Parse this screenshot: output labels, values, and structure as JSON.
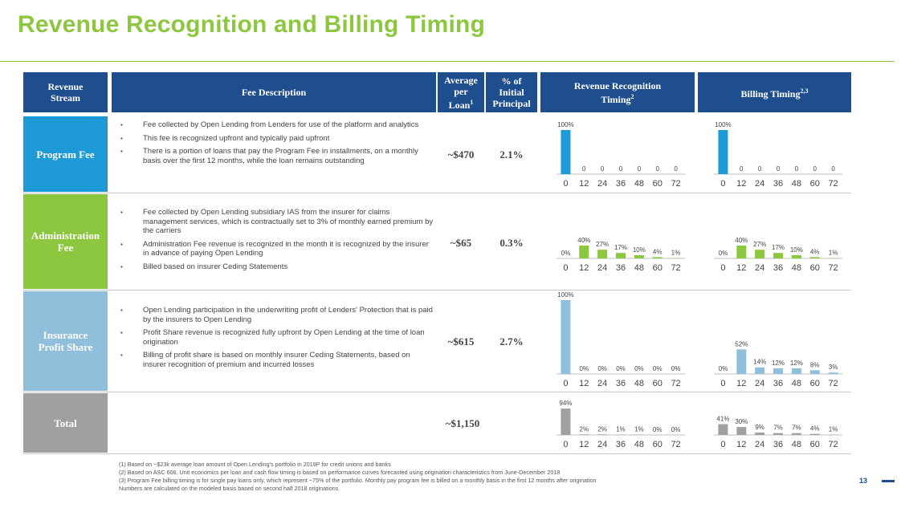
{
  "title": "Revenue Recognition and Billing Timing",
  "colors": {
    "accent_green": "#8dc63f",
    "header_blue": "#1f4e8f",
    "program_blue": "#1e9ad6",
    "admin_green": "#8dc63f",
    "insurance_lightblue": "#8fbfdb",
    "total_gray": "#a0a0a0"
  },
  "headers": {
    "stream_l1": "Revenue",
    "stream_l2": "Stream",
    "fee_description": "Fee Description",
    "avg_l1": "Average",
    "avg_l2": "per",
    "avg_l3": "Loan",
    "avg_sup": "1",
    "pct_l1": "% of",
    "pct_l2": "Initial",
    "pct_l3": "Principal",
    "recog_l1": "Revenue Recognition",
    "recog_l2": "Timing",
    "recog_sup": "2",
    "billing": "Billing Timing",
    "billing_sup": "2,3"
  },
  "rows": [
    {
      "label_l1": "Program Fee",
      "label_l2": "",
      "color": "#1e9ad6",
      "bullets": [
        "Fee collected by Open Lending from Lenders for use of the platform and analytics",
        "This fee is recognized upfront and typically paid upfront",
        "There is a portion of loans that pay the Program Fee in installments, on a monthly basis over the first 12 months, while the loan remains outstanding"
      ],
      "avg": "~$470",
      "pct": "2.1%"
    },
    {
      "label_l1": "Administration",
      "label_l2": "Fee",
      "color": "#8dc63f",
      "bullets": [
        "Fee collected by Open Lending subsidiary IAS from the insurer for claims management services, which is contractually set to 3% of monthly earned premium by the carriers",
        "Administration Fee revenue is recognized in the month it is recognized by the insurer in advance of paying Open Lending",
        "Billed based on insurer Ceding Statements"
      ],
      "avg": "~$65",
      "pct": "0.3%"
    },
    {
      "label_l1": "Insurance",
      "label_l2": "Profit Share",
      "color": "#8fbfdb",
      "bullets": [
        "Open Lending participation in the underwriting profit of Lenders' Protection that is paid by the insurers to Open Lending",
        "Profit Share revenue is recognized fully upfront by Open Lending at the time of loan origination",
        "Billing of profit share is based on monthly insurer Ceding Statements, based on insurer recognition of premium and incurred losses"
      ],
      "avg": "~$615",
      "pct": "2.7%"
    },
    {
      "label_l1": "Total",
      "label_l2": "",
      "color": "#a0a0a0",
      "bullets": [],
      "avg": "~$1,150",
      "pct": ""
    }
  ],
  "chart_data": [
    {
      "type": "bar",
      "id": "program-recognition",
      "categories": [
        "0",
        "12",
        "24",
        "36",
        "48",
        "60",
        "72"
      ],
      "values": [
        100,
        0,
        0,
        0,
        0,
        0,
        0
      ],
      "labels": [
        "100%",
        "0",
        "0",
        "0",
        "0",
        "0",
        "0"
      ],
      "color": "#1e9ad6"
    },
    {
      "type": "bar",
      "id": "program-billing",
      "categories": [
        "0",
        "12",
        "24",
        "36",
        "48",
        "60",
        "72"
      ],
      "values": [
        100,
        0,
        0,
        0,
        0,
        0,
        0
      ],
      "labels": [
        "100%",
        "0",
        "0",
        "0",
        "0",
        "0",
        "0"
      ],
      "color": "#1e9ad6"
    },
    {
      "type": "bar",
      "id": "admin-recognition",
      "categories": [
        "0",
        "12",
        "24",
        "36",
        "48",
        "60",
        "72"
      ],
      "values": [
        0,
        40,
        27,
        17,
        10,
        4,
        1
      ],
      "labels": [
        "0%",
        "40%",
        "27%",
        "17%",
        "10%",
        "4%",
        "1%"
      ],
      "color": "#8dc63f"
    },
    {
      "type": "bar",
      "id": "admin-billing",
      "categories": [
        "0",
        "12",
        "24",
        "36",
        "48",
        "60",
        "72"
      ],
      "values": [
        0,
        40,
        27,
        17,
        10,
        4,
        1
      ],
      "labels": [
        "0%",
        "40%",
        "27%",
        "17%",
        "10%",
        "4%",
        "1%"
      ],
      "color": "#8dc63f"
    },
    {
      "type": "bar",
      "id": "insurance-recognition",
      "categories": [
        "0",
        "12",
        "24",
        "36",
        "48",
        "60",
        "72"
      ],
      "values": [
        100,
        0,
        0,
        0,
        0,
        0,
        0
      ],
      "labels": [
        "100%",
        "0%",
        "0%",
        "0%",
        "0%",
        "0%",
        "0%"
      ],
      "color": "#8fbfdb"
    },
    {
      "type": "bar",
      "id": "insurance-billing",
      "categories": [
        "0",
        "12",
        "24",
        "36",
        "48",
        "60",
        "72"
      ],
      "values": [
        0,
        52,
        14,
        12,
        12,
        8,
        3
      ],
      "labels": [
        "0%",
        "52%",
        "14%",
        "12%",
        "12%",
        "8%",
        "3%"
      ],
      "color": "#8fbfdb"
    },
    {
      "type": "bar",
      "id": "total-recognition",
      "categories": [
        "0",
        "12",
        "24",
        "36",
        "48",
        "60",
        "72"
      ],
      "values": [
        94,
        2,
        2,
        1,
        1,
        0,
        0
      ],
      "labels": [
        "94%",
        "2%",
        "2%",
        "1%",
        "1%",
        "0%",
        "0%"
      ],
      "color": "#a0a0a0"
    },
    {
      "type": "bar",
      "id": "total-billing",
      "categories": [
        "0",
        "12",
        "24",
        "36",
        "48",
        "60",
        "72"
      ],
      "values": [
        41,
        30,
        9,
        7,
        7,
        4,
        1
      ],
      "labels": [
        "41%",
        "30%",
        "9%",
        "7%",
        "7%",
        "4%",
        "1%"
      ],
      "color": "#a0a0a0"
    }
  ],
  "footnotes": [
    "(1) Based on ~$23k average loan amount of Open Lending's portfolio in 2019P for credit unions and banks",
    "(2) Based on ASC 606. Unit economics per loan and cash flow timing is based on performance curves forecasted using origination characteristics from June-December 2018",
    "(3) Program Fee billing timing is for single pay loans only, which represent ~75% of the portfolio. Monthly pay program fee is billed on a monthly basis in the first 12 months after origination",
    "Numbers are calculated on the modeled basis based on second half 2018 originations"
  ],
  "page_number": "13"
}
